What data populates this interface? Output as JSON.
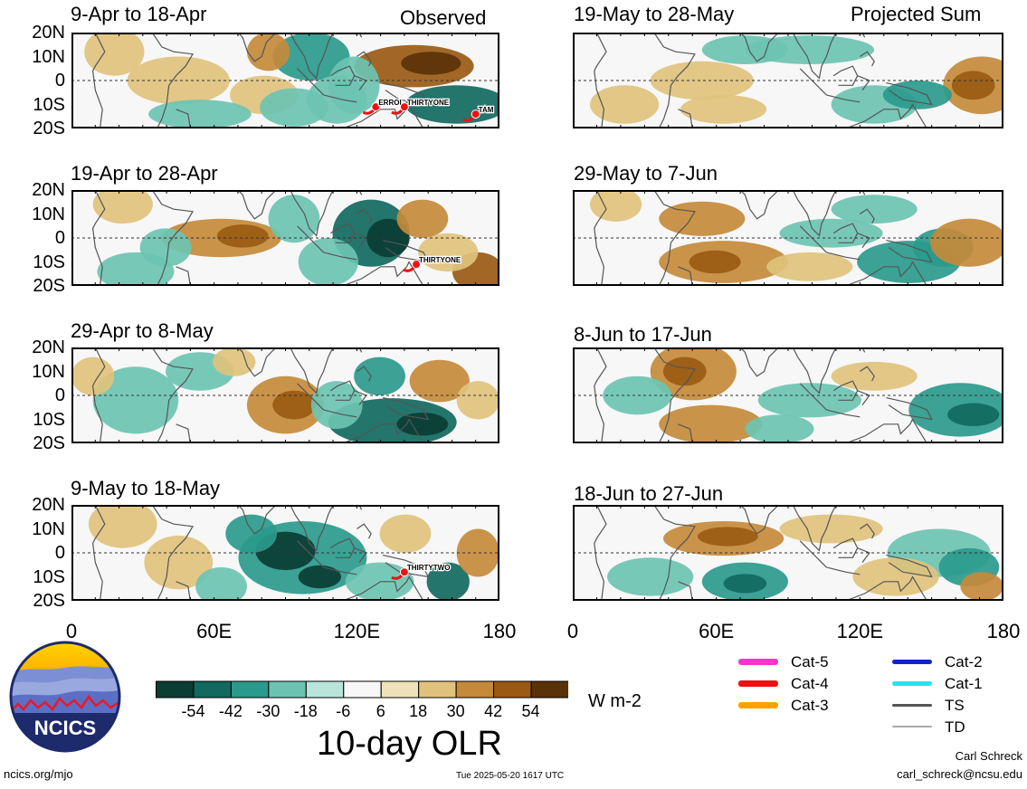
{
  "header": {
    "left_tag": "Observed",
    "right_tag": "Projected Sum"
  },
  "panels_left": [
    {
      "title": "9-Apr to 18-Apr",
      "storms": [
        {
          "label": "ERROL",
          "lon": 128,
          "lat": -11
        },
        {
          "label": "THIRTYONE",
          "lon": 140,
          "lat": -11
        },
        {
          "label": "TAM",
          "lon": 170,
          "lat": -14
        }
      ]
    },
    {
      "title": "19-Apr to 28-Apr",
      "storms": [
        {
          "label": "THIRTYONE",
          "lon": 145,
          "lat": -11
        }
      ]
    },
    {
      "title": "29-Apr to 8-May",
      "storms": []
    },
    {
      "title": "9-May to 18-May",
      "storms": [
        {
          "label": "THIRTYTWO",
          "lon": 140,
          "lat": -8
        }
      ]
    }
  ],
  "panels_right": [
    {
      "title": "19-May to 28-May"
    },
    {
      "title": "29-May to 7-Jun"
    },
    {
      "title": "8-Jun to 17-Jun"
    },
    {
      "title": "18-Jun to 27-Jun"
    }
  ],
  "lat_labels": [
    "20N",
    "10N",
    "0",
    "10S",
    "20S"
  ],
  "lon_labels": [
    "0",
    "60E",
    "120E",
    "180"
  ],
  "colorbar": {
    "colors": [
      "#0b3d33",
      "#11695f",
      "#2a9a8c",
      "#6cc3b2",
      "#b8e4da",
      "#f7f7f7",
      "#f0e2b8",
      "#e0c27c",
      "#c48a3a",
      "#9a5a14",
      "#5a3208"
    ],
    "ticks": [
      "-54",
      "-42",
      "-30",
      "-18",
      "-6",
      "6",
      "18",
      "30",
      "42",
      "54"
    ],
    "units": "W m-2",
    "title": "10-day OLR"
  },
  "legend": [
    {
      "label": "Cat-5",
      "color": "#ff33cc",
      "width": 7
    },
    {
      "label": "Cat-4",
      "color": "#ee1111",
      "width": 7
    },
    {
      "label": "Cat-3",
      "color": "#ffa200",
      "width": 7
    },
    {
      "label": "Cat-2",
      "color": "#1122cc",
      "width": 5
    },
    {
      "label": "Cat-1",
      "color": "#22e5f0",
      "width": 5
    },
    {
      "label": "TS",
      "color": "#555555",
      "width": 3
    },
    {
      "label": "TD",
      "color": "#aaaaaa",
      "width": 2
    }
  ],
  "logo": {
    "text": "NCICS"
  },
  "footer": {
    "site": "ncics.org/mjo",
    "timestamp": "Tue 2025-05-20 1617 UTC",
    "author": "Carl Schreck",
    "email": "carl_schreck@ncsu.edu"
  }
}
